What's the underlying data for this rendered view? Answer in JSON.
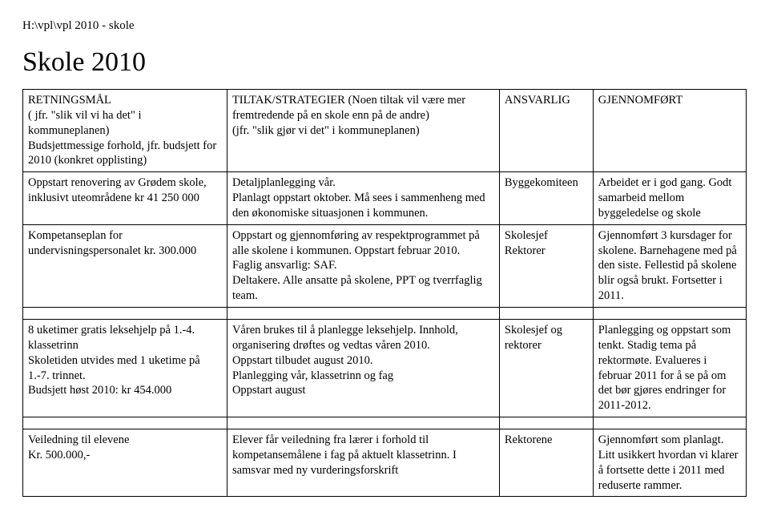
{
  "breadcrumb": "H:\\vpl\\vpl 2010 - skole",
  "title": "Skole 2010",
  "header": {
    "col1": "RETNINGSMÅL\n( jfr. \"slik vil vi ha det\" i kommuneplanen)\nBudsjettmessige forhold, jfr. budsjett for 2010 (konkret opplisting)",
    "col2": "TILTAK/STRATEGIER (Noen tiltak vil være mer fremtredende på en skole enn på de andre)\n(jfr. \"slik gjør vi det\" i kommuneplanen)",
    "col3": "ANSVARLIG",
    "col4": "GJENNOMFØRT"
  },
  "rows": [
    {
      "c1": "Oppstart renovering av Grødem skole, inklusivt uteområdene kr 41 250 000",
      "c2": "Detaljplanlegging vår.\nPlanlagt oppstart oktober. Må sees i sammenheng med den økonomiske situasjonen i kommunen.",
      "c3": "Byggekomiteen",
      "c4": "Arbeidet er i god gang. Godt samarbeid mellom byggeledelse og skole"
    },
    {
      "c1": "Kompetanseplan for undervisningspersonalet kr. 300.000",
      "c2": "Oppstart og gjennomføring av respektprogrammet på alle skolene i kommunen. Oppstart februar 2010.\nFaglig ansvarlig: SAF.\nDeltakere. Alle ansatte på skolene, PPT og tverrfaglig team.",
      "c3": "Skolesjef\nRektorer",
      "c4": "Gjennomført 3 kursdager for skolene. Barnehagene med på den siste. Fellestid på skolene blir også brukt. Fortsetter i 2011."
    },
    {
      "c1": "8 uketimer gratis leksehjelp på 1.-4. klassetrinn\nSkoletiden utvides med 1 uketime på 1.-7. trinnet.\nBudsjett høst 2010: kr 454.000",
      "c2": "Våren brukes til å planlegge leksehjelp. Innhold, organisering drøftes og vedtas våren 2010.\nOppstart tilbudet august 2010.\nPlanlegging vår, klassetrinn og fag\nOppstart august",
      "c3": "Skolesjef og rektorer",
      "c4": "Planlegging og oppstart som tenkt. Stadig tema på rektormøte. Evalueres i februar 2011 for å se på om det bør gjøres endringer for 2011-2012."
    },
    {
      "c1": "Veiledning til elevene\nKr. 500.000,-",
      "c2": "Elever får veiledning fra lærer i forhold til kompetansemålene i fag på aktuelt klassetrinn. I samsvar med ny vurderingsforskrift",
      "c3": "Rektorene",
      "c4": "Gjennomført som planlagt. Litt usikkert hvordan vi klarer å fortsette dette i 2011 med reduserte rammer."
    }
  ]
}
